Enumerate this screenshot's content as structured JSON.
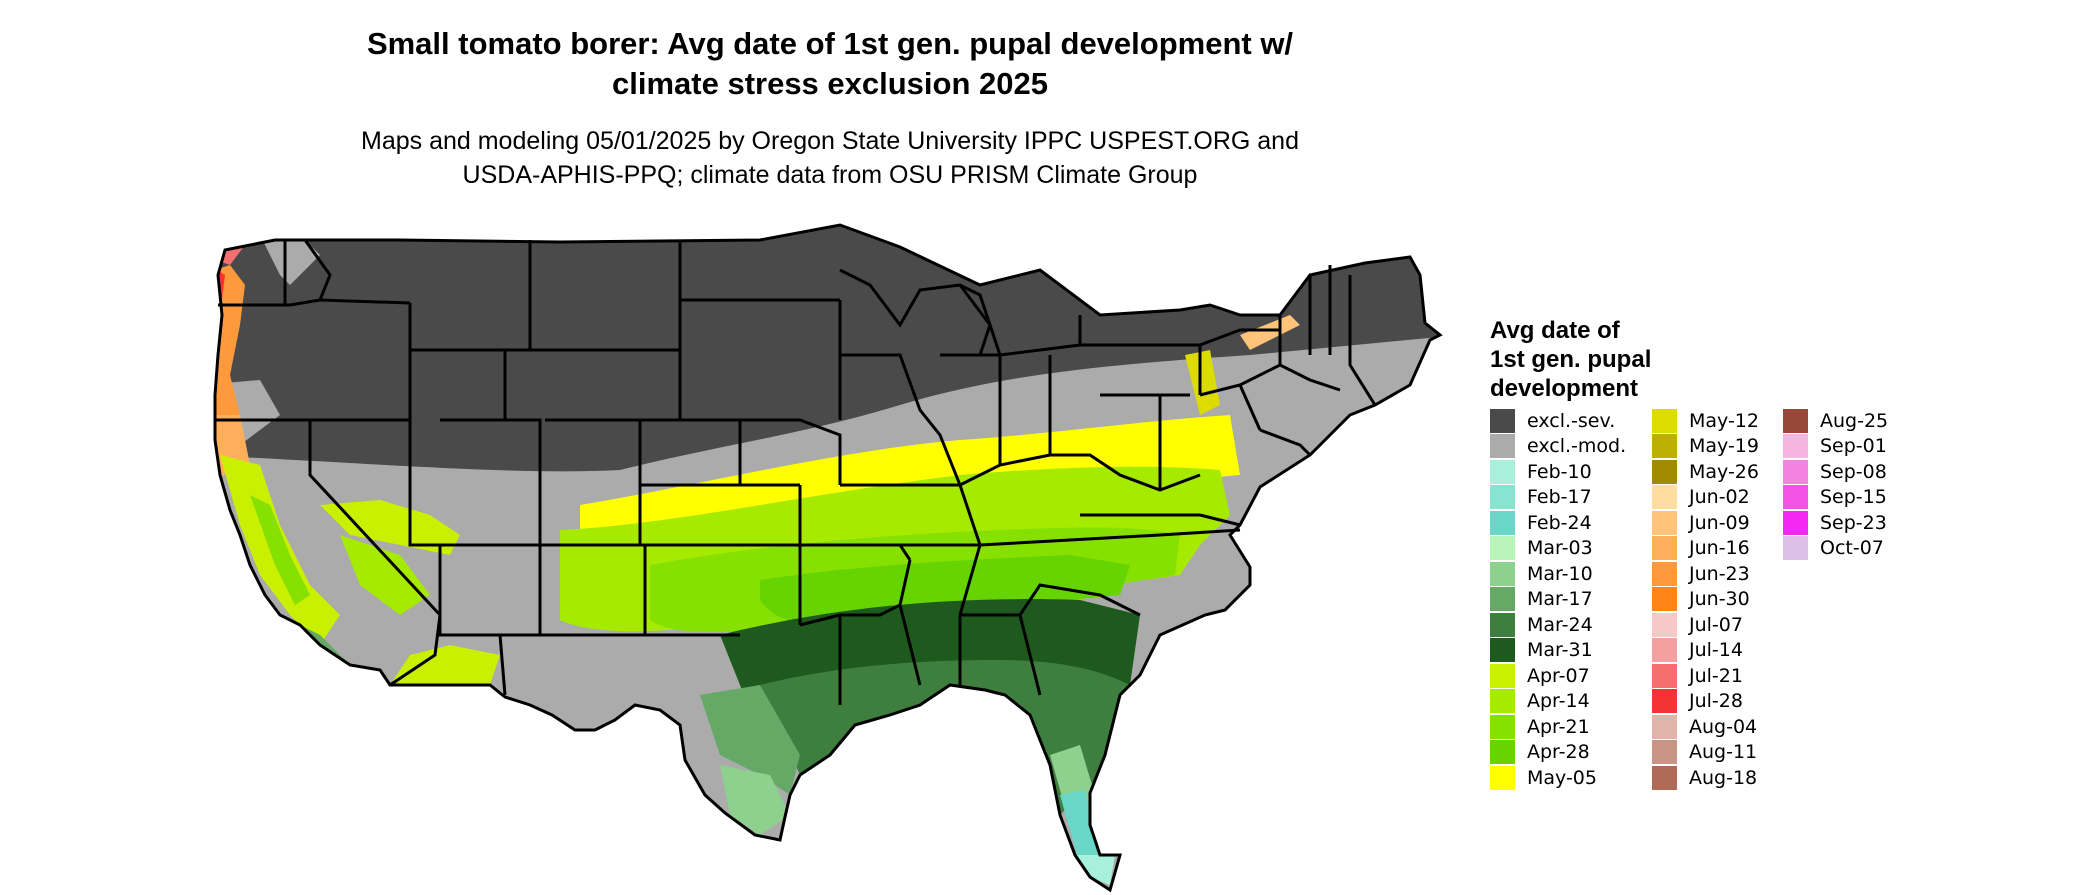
{
  "header": {
    "title_line1": "Small tomato borer: Avg date of 1st gen. pupal development w/",
    "title_line2": "climate stress exclusion 2025",
    "subtitle_line1": "Maps and modeling 05/01/2025 by Oregon State University IPPC USPEST.ORG and",
    "subtitle_line2": "USDA-APHIS-PPQ; climate data from OSU PRISM Climate Group"
  },
  "legend": {
    "title_line1": "Avg date of",
    "title_line2": "1st gen. pupal",
    "title_line3": "development",
    "columns": [
      [
        {
          "label": "excl.-sev.",
          "color": "#4a4a4a"
        },
        {
          "label": "excl.-mod.",
          "color": "#ababab"
        },
        {
          "label": "Feb-10",
          "color": "#a8f0dc"
        },
        {
          "label": "Feb-17",
          "color": "#86e4d0"
        },
        {
          "label": "Feb-24",
          "color": "#6ad6c8"
        },
        {
          "label": "Mar-03",
          "color": "#b8f4b8"
        },
        {
          "label": "Mar-10",
          "color": "#8ed08e"
        },
        {
          "label": "Mar-17",
          "color": "#66a866"
        },
        {
          "label": "Mar-24",
          "color": "#3e7e3e"
        },
        {
          "label": "Mar-31",
          "color": "#1e5a1e"
        },
        {
          "label": "Apr-07",
          "color": "#c8f000"
        },
        {
          "label": "Apr-14",
          "color": "#a6ea00"
        },
        {
          "label": "Apr-21",
          "color": "#86e000"
        },
        {
          "label": "Apr-28",
          "color": "#66d400"
        },
        {
          "label": "May-05",
          "color": "#ffff00"
        }
      ],
      [
        {
          "label": "May-12",
          "color": "#dcdc00"
        },
        {
          "label": "May-19",
          "color": "#bcb000"
        },
        {
          "label": "May-26",
          "color": "#a08a00"
        },
        {
          "label": "Jun-02",
          "color": "#ffdca0"
        },
        {
          "label": "Jun-09",
          "color": "#ffc47a"
        },
        {
          "label": "Jun-16",
          "color": "#ffae5a"
        },
        {
          "label": "Jun-23",
          "color": "#ff9a3c"
        },
        {
          "label": "Jun-30",
          "color": "#ff8418"
        },
        {
          "label": "Jul-07",
          "color": "#f6c8c8"
        },
        {
          "label": "Jul-14",
          "color": "#f4a0a0"
        },
        {
          "label": "Jul-21",
          "color": "#f47070"
        },
        {
          "label": "Jul-28",
          "color": "#f43434"
        },
        {
          "label": "Aug-04",
          "color": "#e0b4a8"
        },
        {
          "label": "Aug-11",
          "color": "#c89484"
        },
        {
          "label": "Aug-18",
          "color": "#b06a58"
        }
      ],
      [
        {
          "label": "Aug-25",
          "color": "#984838"
        },
        {
          "label": "Sep-01",
          "color": "#f8b4e0"
        },
        {
          "label": "Sep-08",
          "color": "#f482e0"
        },
        {
          "label": "Sep-15",
          "color": "#f454e6"
        },
        {
          "label": "Sep-23",
          "color": "#f428f0"
        },
        {
          "label": "Oct-07",
          "color": "#dcc0e6"
        }
      ]
    ]
  },
  "map": {
    "region": "Contiguous United States",
    "style": {
      "outline_color": "#000000",
      "excl_severe_color": "#4a4a4a",
      "excl_moderate_color": "#ababab"
    }
  }
}
